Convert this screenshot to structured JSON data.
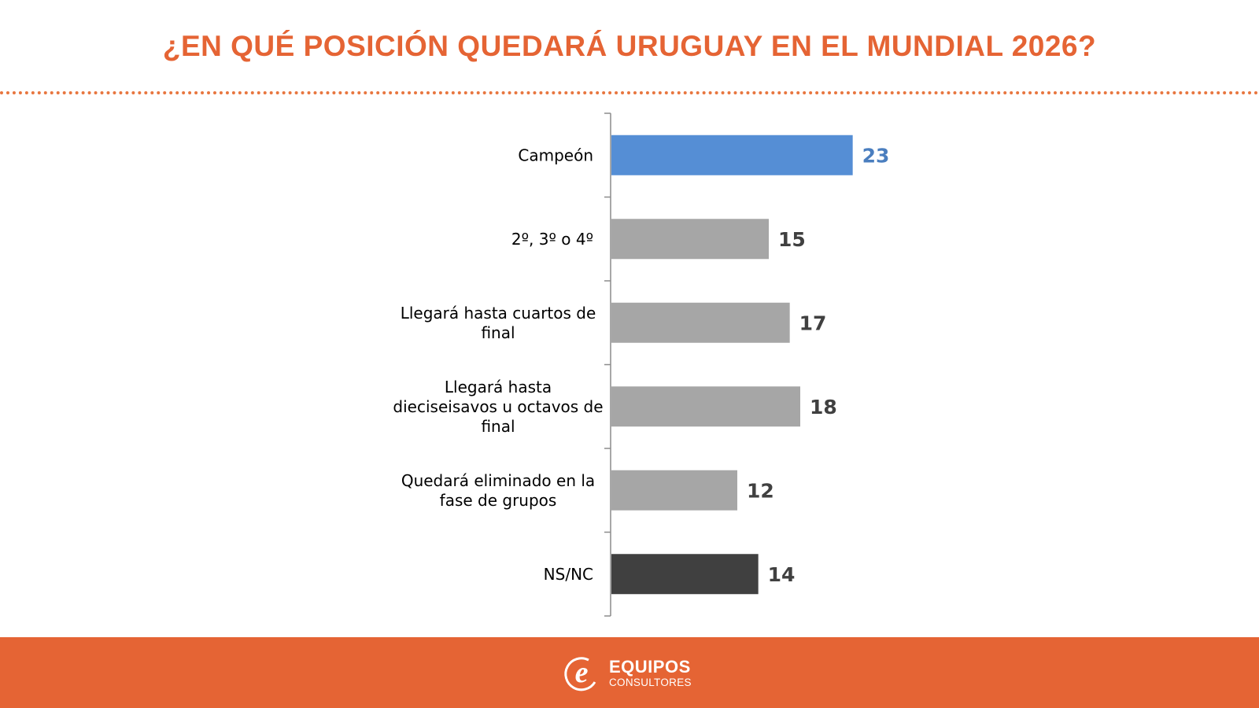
{
  "header": {
    "title": "¿EN QUÉ POSICIÓN QUEDARÁ URUGUAY EN EL MUNDIAL 2026?"
  },
  "chart_data": {
    "type": "bar",
    "orientation": "horizontal",
    "title": "",
    "xlabel": "",
    "ylabel": "",
    "xlim": [
      0,
      60
    ],
    "grid": false,
    "legend": "none",
    "categories": [
      [
        "Campeón"
      ],
      [
        "2º, 3º o 4º"
      ],
      [
        "Llegará hasta cuartos de",
        "final"
      ],
      [
        "Llegará hasta",
        "dieciseisavos u octavos de",
        "final"
      ],
      [
        "Quedará eliminado en la",
        "fase de grupos"
      ],
      [
        "NS/NC"
      ]
    ],
    "values": [
      23,
      15,
      17,
      18,
      12,
      14
    ],
    "value_labels": [
      "23",
      "15",
      "17",
      "18",
      "12",
      "14"
    ],
    "bar_colors": [
      "#558ed5",
      "#a6a6a6",
      "#a6a6a6",
      "#a6a6a6",
      "#a6a6a6",
      "#404040"
    ],
    "value_label_colors": [
      "#4a7ebf",
      "#404040",
      "#404040",
      "#404040",
      "#404040",
      "#404040"
    ]
  },
  "footer": {
    "brand_name": "EQUIPOS",
    "brand_subtitle": "CONSULTORES",
    "logo_letter": "e"
  },
  "colors": {
    "accent": "#e56434",
    "title_text": "#e56434",
    "dotted_rule": "#e8763f",
    "axis": "#8c8c8c",
    "category_text": "#000000"
  }
}
